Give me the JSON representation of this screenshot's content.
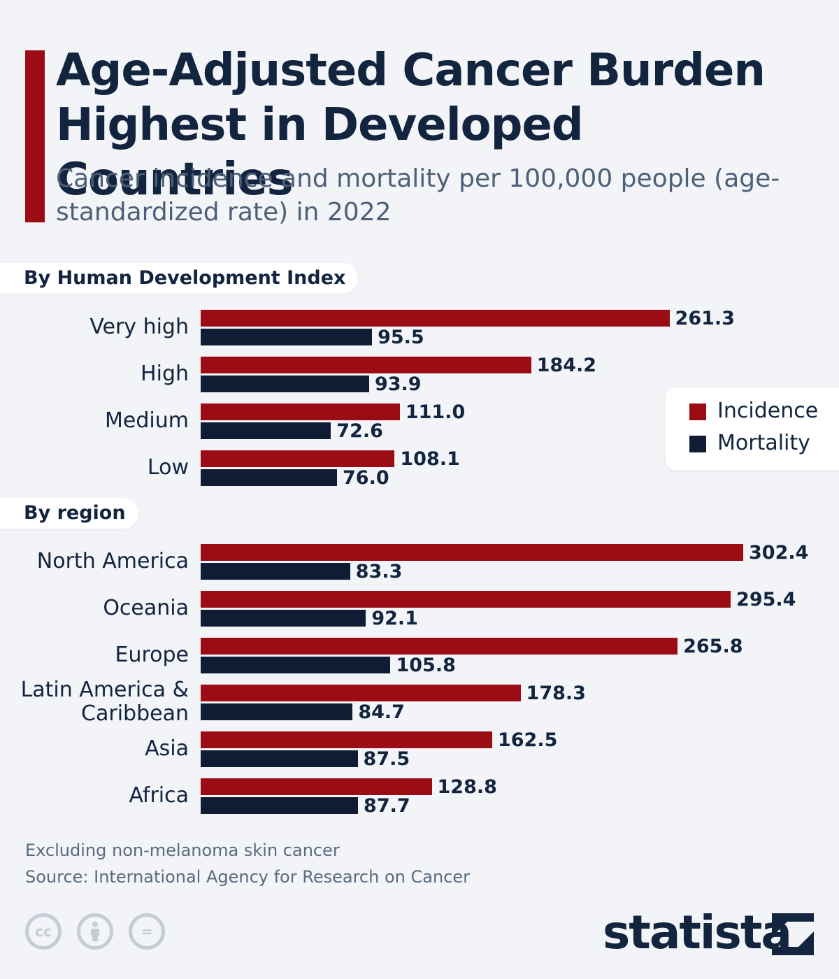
{
  "header": {
    "title": "Age-Adjusted Cancer Burden Highest in Developed Countries",
    "subtitle": "Cancer incidence and mortality per 100,000 people (age-standardized rate) in 2022"
  },
  "sections": {
    "hdi": "By Human Development Index",
    "region": "By region"
  },
  "legend": {
    "incidence": "Incidence",
    "mortality": "Mortality"
  },
  "colors": {
    "incidence": "#9b0c15",
    "mortality": "#0f1c33",
    "accent": "#9b0c15"
  },
  "chart_data": [
    {
      "type": "bar",
      "orientation": "horizontal",
      "title": "By Human Development Index",
      "categories": [
        "Very high",
        "High",
        "Medium",
        "Low"
      ],
      "series": [
        {
          "name": "Incidence",
          "values": [
            261.3,
            184.2,
            111.0,
            108.1
          ],
          "labels": [
            "261.3",
            "184.2",
            "111.0",
            "108.1"
          ]
        },
        {
          "name": "Mortality",
          "values": [
            95.5,
            93.9,
            72.6,
            76.0
          ],
          "labels": [
            "95.5",
            "93.9",
            "72.6",
            "76.0"
          ]
        }
      ],
      "xlim": [
        0,
        310
      ],
      "grid": false,
      "legend_position": "right"
    },
    {
      "type": "bar",
      "orientation": "horizontal",
      "title": "By region",
      "categories": [
        "North America",
        "Oceania",
        "Europe",
        "Latin America & Caribbean",
        "Asia",
        "Africa"
      ],
      "series": [
        {
          "name": "Incidence",
          "values": [
            302.4,
            295.4,
            265.8,
            178.3,
            162.5,
            128.8
          ],
          "labels": [
            "302.4",
            "295.4",
            "265.8",
            "178.3",
            "162.5",
            "128.8"
          ]
        },
        {
          "name": "Mortality",
          "values": [
            83.3,
            92.1,
            105.8,
            84.7,
            87.5,
            87.7
          ],
          "labels": [
            "83.3",
            "92.1",
            "105.8",
            "84.7",
            "87.5",
            "87.7"
          ]
        }
      ],
      "xlim": [
        0,
        310
      ],
      "grid": false
    }
  ],
  "footer": {
    "note": "Excluding non-melanoma skin cancer",
    "source": "Source: International Agency for Research on Cancer",
    "license_icons": [
      "cc-icon",
      "by-icon",
      "nd-icon"
    ],
    "cc_label": "cc",
    "nd_label": "=",
    "logo": "statista"
  }
}
